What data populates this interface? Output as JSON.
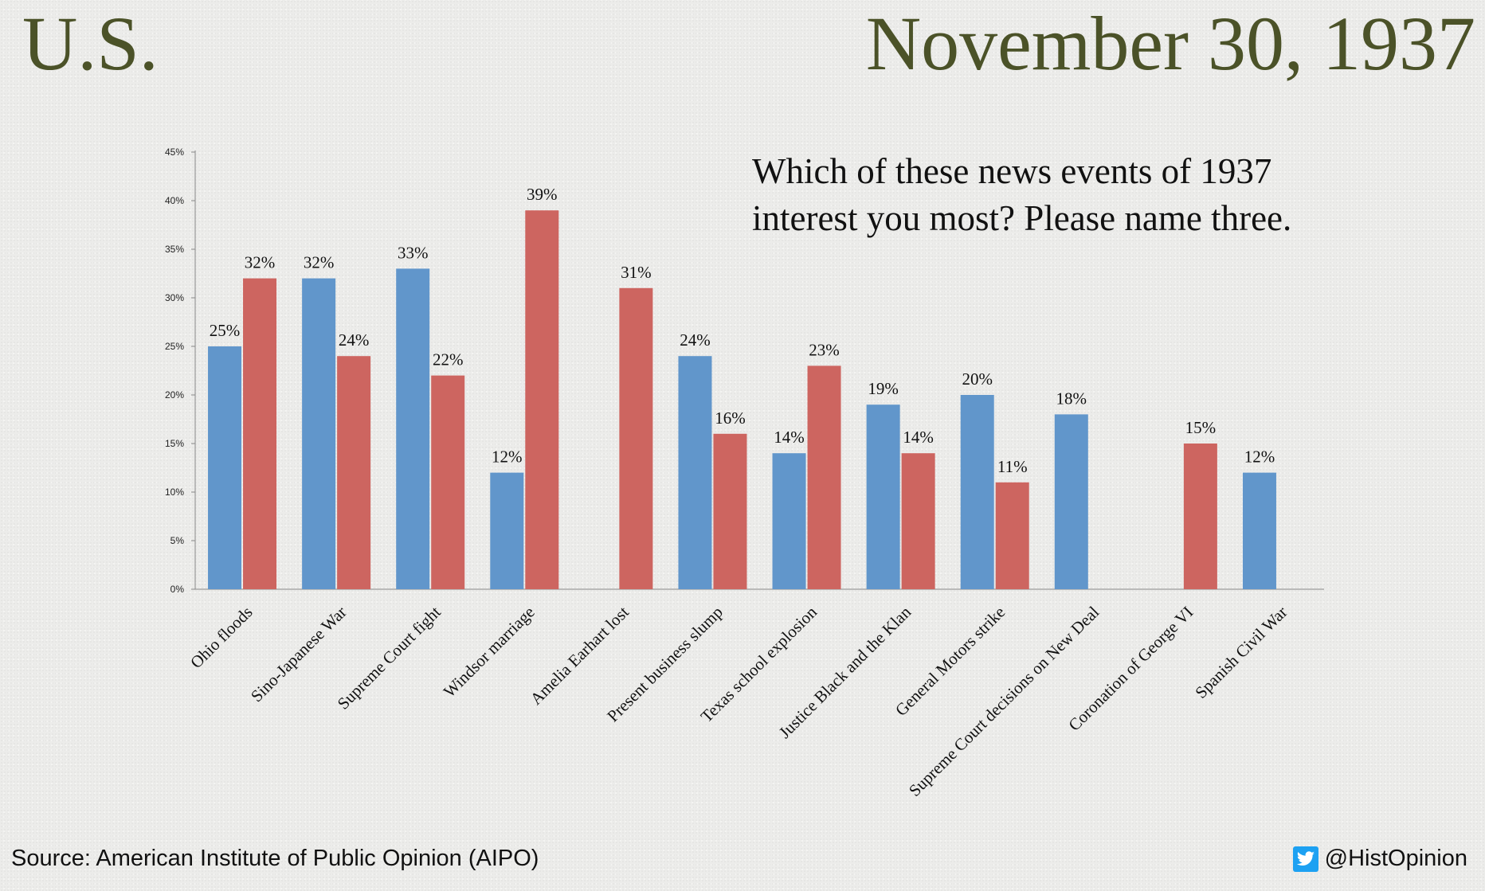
{
  "header": {
    "country": "U.S.",
    "date": "November 30, 1937"
  },
  "question": {
    "line1": "Which of these news events of 1937",
    "line2": "interest you most? Please name three."
  },
  "footer": {
    "source": "Source: American Institute of Public Opinion (AIPO)",
    "handle": "@HistOpinion"
  },
  "colors": {
    "series_a": "#6196cb",
    "series_b": "#cd6560",
    "title": "#4b5228"
  },
  "chart_data": {
    "type": "bar",
    "categories": [
      "Ohio floods",
      "Sino-Japanese War",
      "Supreme Court fight",
      "Windsor marriage",
      "Amelia Earhart lost",
      "Present business slump",
      "Texas school explosion",
      "Justice Black and the Klan",
      "General Motors strike",
      "Supreme Court decisions on New Deal",
      "Coronation of George VI",
      "Spanish Civil War"
    ],
    "series": [
      {
        "values": [
          25,
          32,
          33,
          12,
          null,
          24,
          14,
          19,
          20,
          18,
          null,
          12
        ]
      },
      {
        "values": [
          32,
          24,
          22,
          39,
          31,
          16,
          23,
          14,
          11,
          null,
          15,
          null
        ]
      }
    ],
    "ylim": [
      0,
      45
    ],
    "yticks": [
      "0%",
      "5%",
      "10%",
      "15%",
      "20%",
      "25%",
      "30%",
      "35%",
      "40%",
      "45%"
    ],
    "value_suffix": "%",
    "grid": false,
    "legend": "none"
  }
}
